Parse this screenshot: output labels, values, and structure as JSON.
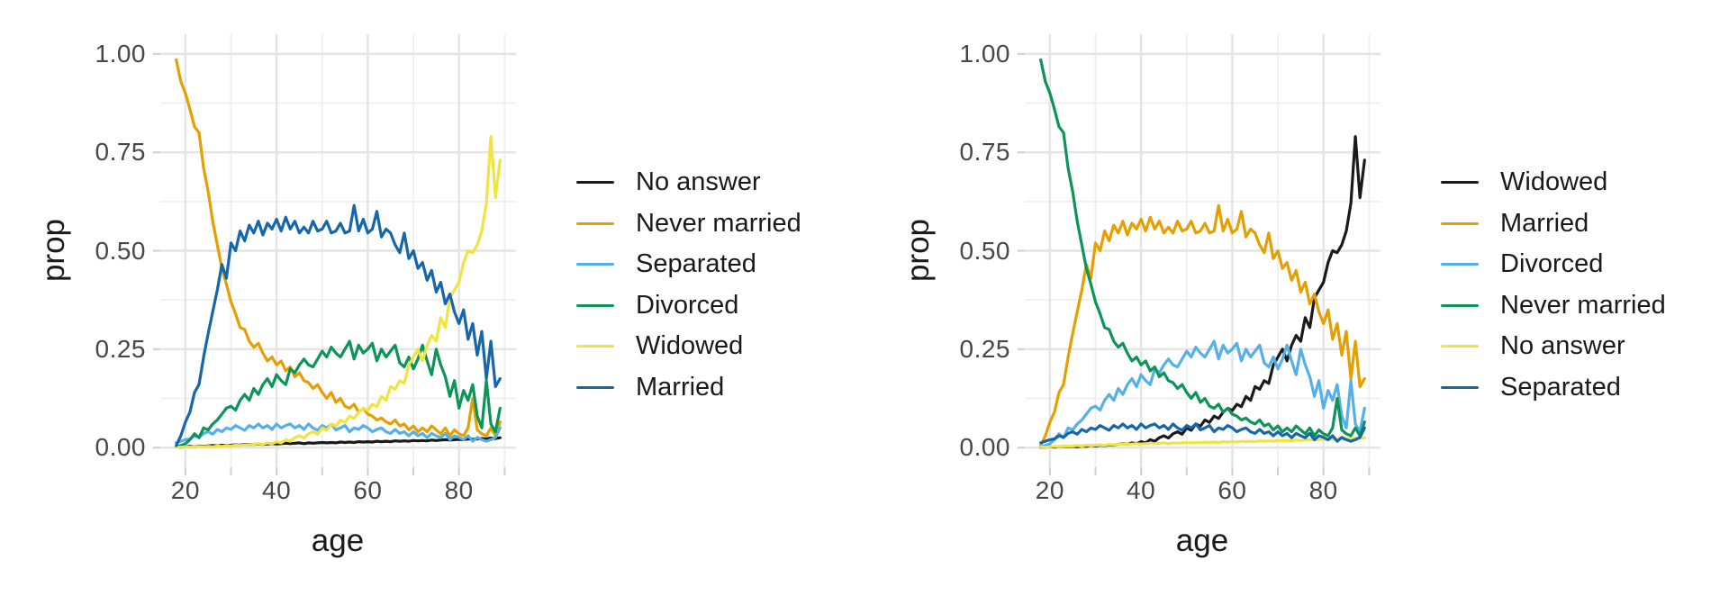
{
  "page": {
    "background": "#FFFFFF"
  },
  "chart_data": {
    "type": "line",
    "title": "",
    "xlabel": "age",
    "ylabel": "prop",
    "xlim": [
      14.5,
      92.5
    ],
    "ylim": [
      -0.05,
      1.05
    ],
    "x_tick_values": [
      20,
      40,
      60,
      80
    ],
    "x_tick_labels": [
      "20",
      "40",
      "60",
      "80"
    ],
    "x_minor_tick_values": [
      30,
      50,
      70,
      90
    ],
    "y_tick_values": [
      0,
      0.25,
      0.5,
      0.75,
      1
    ],
    "y_tick_labels": [
      "0.00",
      "0.25",
      "0.50",
      "0.75",
      "1.00"
    ],
    "grid": "major+minor",
    "legend_position": "right",
    "x": [
      18,
      19,
      20,
      21,
      22,
      23,
      24,
      25,
      26,
      27,
      28,
      29,
      30,
      31,
      32,
      33,
      34,
      35,
      36,
      37,
      38,
      39,
      40,
      41,
      42,
      43,
      44,
      45,
      46,
      47,
      48,
      49,
      50,
      51,
      52,
      53,
      54,
      55,
      56,
      57,
      58,
      59,
      60,
      61,
      62,
      63,
      64,
      65,
      66,
      67,
      68,
      69,
      70,
      71,
      72,
      73,
      74,
      75,
      76,
      77,
      78,
      79,
      80,
      81,
      82,
      83,
      84,
      85,
      86,
      87,
      88,
      89
    ],
    "series_values": {
      "No answer": [
        0.002,
        0.001,
        0.002,
        0.003,
        0.002,
        0.004,
        0.003,
        0.004,
        0.005,
        0.004,
        0.006,
        0.005,
        0.006,
        0.007,
        0.006,
        0.008,
        0.007,
        0.008,
        0.009,
        0.008,
        0.009,
        0.01,
        0.009,
        0.01,
        0.011,
        0.01,
        0.011,
        0.012,
        0.01,
        0.012,
        0.011,
        0.012,
        0.013,
        0.012,
        0.013,
        0.012,
        0.014,
        0.013,
        0.014,
        0.013,
        0.015,
        0.014,
        0.015,
        0.014,
        0.016,
        0.015,
        0.016,
        0.015,
        0.017,
        0.016,
        0.017,
        0.016,
        0.018,
        0.017,
        0.018,
        0.017,
        0.019,
        0.018,
        0.019,
        0.02,
        0.019,
        0.02,
        0.021,
        0.02,
        0.022,
        0.021,
        0.022,
        0.023,
        0.022,
        0.024,
        0.023,
        0.025
      ],
      "Never married": [
        0.985,
        0.93,
        0.9,
        0.86,
        0.815,
        0.8,
        0.71,
        0.65,
        0.575,
        0.515,
        0.455,
        0.415,
        0.37,
        0.34,
        0.305,
        0.3,
        0.27,
        0.255,
        0.265,
        0.24,
        0.22,
        0.23,
        0.21,
        0.22,
        0.195,
        0.205,
        0.18,
        0.19,
        0.17,
        0.165,
        0.15,
        0.16,
        0.14,
        0.125,
        0.14,
        0.115,
        0.125,
        0.105,
        0.1,
        0.11,
        0.09,
        0.1,
        0.085,
        0.08,
        0.07,
        0.075,
        0.065,
        0.06,
        0.07,
        0.055,
        0.06,
        0.045,
        0.055,
        0.04,
        0.05,
        0.04,
        0.055,
        0.045,
        0.035,
        0.05,
        0.03,
        0.045,
        0.035,
        0.03,
        0.05,
        0.125,
        0.045,
        0.035,
        0.03,
        0.05,
        0.03,
        0.065
      ],
      "Separated": [
        0.012,
        0.016,
        0.02,
        0.022,
        0.03,
        0.026,
        0.036,
        0.04,
        0.034,
        0.046,
        0.04,
        0.05,
        0.046,
        0.056,
        0.05,
        0.044,
        0.056,
        0.05,
        0.06,
        0.05,
        0.056,
        0.046,
        0.06,
        0.05,
        0.056,
        0.06,
        0.05,
        0.056,
        0.046,
        0.06,
        0.05,
        0.044,
        0.056,
        0.05,
        0.06,
        0.045,
        0.05,
        0.056,
        0.04,
        0.05,
        0.046,
        0.056,
        0.05,
        0.04,
        0.046,
        0.05,
        0.04,
        0.036,
        0.046,
        0.036,
        0.04,
        0.03,
        0.04,
        0.03,
        0.036,
        0.025,
        0.036,
        0.03,
        0.025,
        0.036,
        0.02,
        0.03,
        0.026,
        0.02,
        0.03,
        0.016,
        0.026,
        0.02,
        0.016,
        0.02,
        0.026,
        0.05
      ],
      "Divorced": [
        0.002,
        0.005,
        0.01,
        0.02,
        0.035,
        0.025,
        0.05,
        0.045,
        0.06,
        0.07,
        0.085,
        0.1,
        0.105,
        0.095,
        0.12,
        0.135,
        0.12,
        0.15,
        0.135,
        0.16,
        0.175,
        0.155,
        0.185,
        0.17,
        0.16,
        0.2,
        0.19,
        0.21,
        0.225,
        0.21,
        0.205,
        0.225,
        0.245,
        0.23,
        0.255,
        0.24,
        0.23,
        0.25,
        0.27,
        0.225,
        0.26,
        0.24,
        0.25,
        0.265,
        0.22,
        0.25,
        0.23,
        0.245,
        0.26,
        0.215,
        0.205,
        0.23,
        0.2,
        0.225,
        0.26,
        0.22,
        0.185,
        0.25,
        0.21,
        0.18,
        0.13,
        0.17,
        0.1,
        0.145,
        0.12,
        0.16,
        0.08,
        0.05,
        0.17,
        0.06,
        0.04,
        0.1
      ],
      "Widowed": [
        0.001,
        0.001,
        0.002,
        0.001,
        0.002,
        0.003,
        0.002,
        0.003,
        0.002,
        0.004,
        0.003,
        0.005,
        0.004,
        0.006,
        0.005,
        0.007,
        0.006,
        0.008,
        0.01,
        0.008,
        0.012,
        0.01,
        0.015,
        0.012,
        0.02,
        0.016,
        0.025,
        0.03,
        0.024,
        0.035,
        0.04,
        0.034,
        0.05,
        0.044,
        0.06,
        0.054,
        0.07,
        0.064,
        0.08,
        0.074,
        0.09,
        0.1,
        0.094,
        0.11,
        0.104,
        0.13,
        0.12,
        0.155,
        0.148,
        0.17,
        0.163,
        0.21,
        0.23,
        0.25,
        0.22,
        0.26,
        0.285,
        0.27,
        0.33,
        0.305,
        0.38,
        0.4,
        0.42,
        0.47,
        0.5,
        0.495,
        0.515,
        0.55,
        0.62,
        0.79,
        0.635,
        0.73
      ],
      "Married": [
        0.005,
        0.03,
        0.065,
        0.09,
        0.14,
        0.16,
        0.23,
        0.29,
        0.345,
        0.4,
        0.465,
        0.43,
        0.52,
        0.5,
        0.55,
        0.525,
        0.565,
        0.545,
        0.575,
        0.54,
        0.57,
        0.555,
        0.58,
        0.55,
        0.585,
        0.555,
        0.575,
        0.545,
        0.56,
        0.545,
        0.575,
        0.55,
        0.555,
        0.575,
        0.545,
        0.55,
        0.57,
        0.545,
        0.55,
        0.615,
        0.55,
        0.58,
        0.545,
        0.555,
        0.6,
        0.535,
        0.555,
        0.545,
        0.515,
        0.495,
        0.545,
        0.48,
        0.5,
        0.455,
        0.47,
        0.425,
        0.45,
        0.395,
        0.42,
        0.365,
        0.39,
        0.345,
        0.315,
        0.35,
        0.275,
        0.315,
        0.235,
        0.295,
        0.175,
        0.27,
        0.155,
        0.175
      ]
    },
    "panels": [
      {
        "id": "left",
        "legend": [
          {
            "label": "No answer",
            "color": "#1A1A1A"
          },
          {
            "label": "Never married",
            "color": "#E69F00"
          },
          {
            "label": "Separated",
            "color": "#56B0E8"
          },
          {
            "label": "Divorced",
            "color": "#0D9459"
          },
          {
            "label": "Widowed",
            "color": "#F0E442"
          },
          {
            "label": "Married",
            "color": "#1666AC"
          }
        ]
      },
      {
        "id": "right",
        "legend": [
          {
            "label": "Widowed",
            "color": "#1A1A1A"
          },
          {
            "label": "Married",
            "color": "#E69F00"
          },
          {
            "label": "Divorced",
            "color": "#56B0E8"
          },
          {
            "label": "Never married",
            "color": "#0D9459"
          },
          {
            "label": "No answer",
            "color": "#F0E442"
          },
          {
            "label": "Separated",
            "color": "#1666AC"
          }
        ]
      }
    ],
    "colors": {
      "grid_major": "#E4E4E4",
      "grid_minor": "#EFEFEF",
      "tick": "#CFCFCF",
      "axis_text": "#474747",
      "axis_title": "#1A1A1A"
    }
  }
}
